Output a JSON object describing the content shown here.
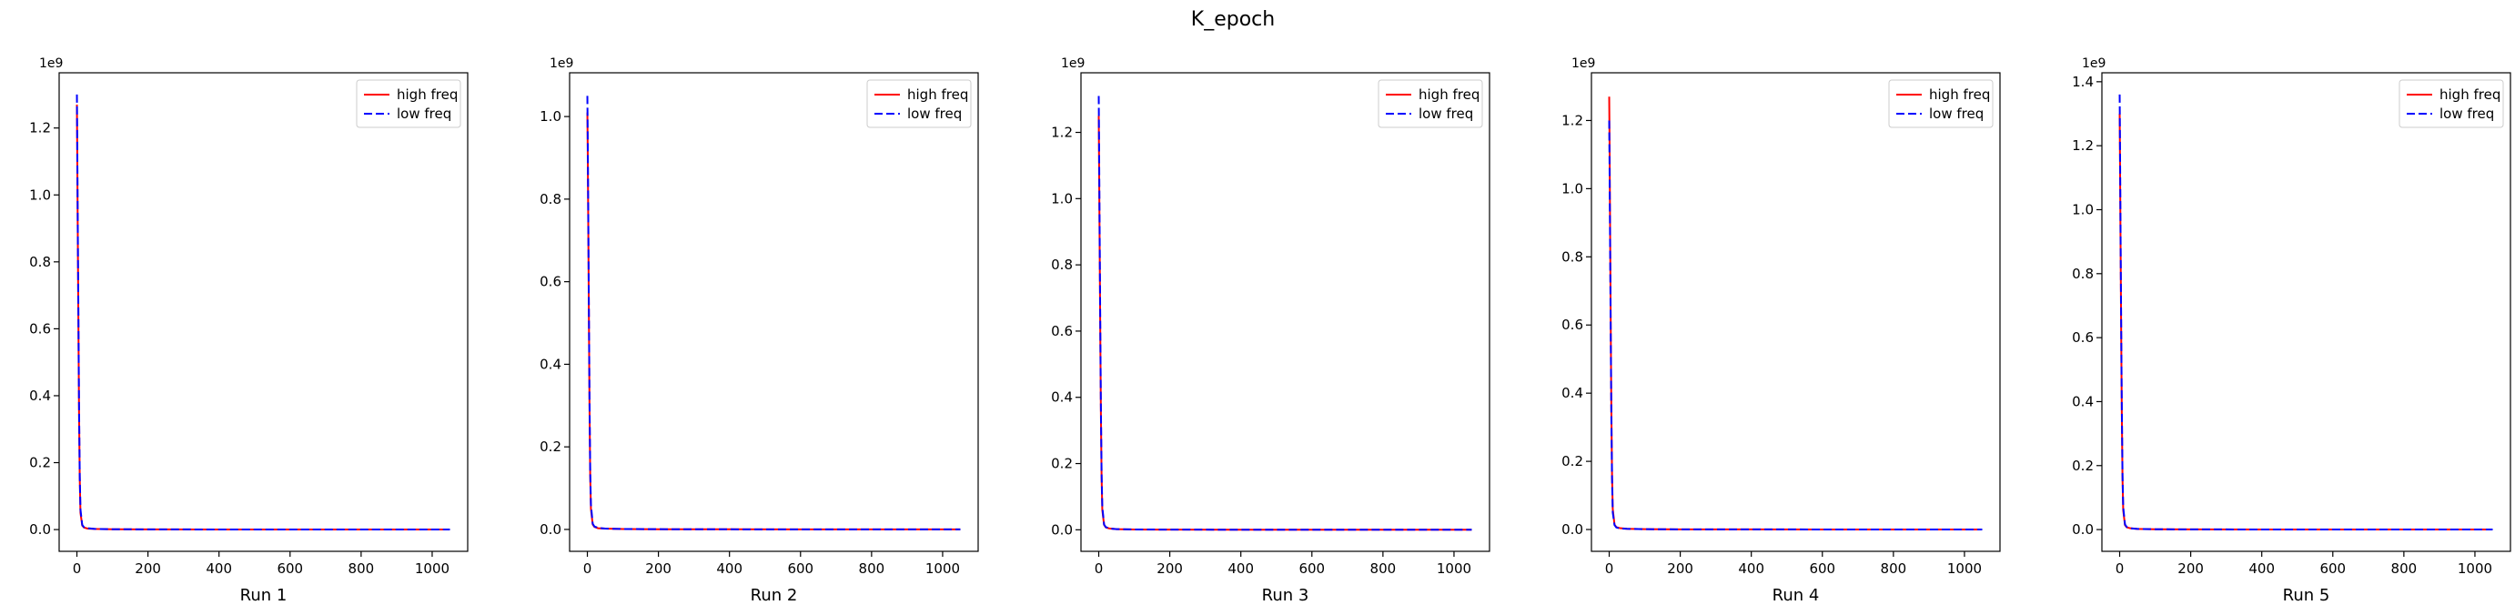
{
  "figure": {
    "suptitle": "K_epoch"
  },
  "legend_style": {
    "high_color": "#ff0000",
    "low_color": "#0000ff"
  },
  "chart_data": [
    {
      "type": "line",
      "title": "",
      "xlabel": "Run 1",
      "ylabel": "",
      "y_offset_label": "1e9",
      "xlim": [
        -50,
        1100
      ],
      "ylim": [
        -0.065,
        1.365
      ],
      "xticks": [
        0,
        200,
        400,
        600,
        800,
        1000
      ],
      "xtick_labels": [
        "0",
        "200",
        "400",
        "600",
        "800",
        "1000"
      ],
      "yticks": [
        0.0,
        0.2,
        0.4,
        0.6,
        0.8,
        1.0,
        1.2
      ],
      "ytick_labels": [
        "0.0",
        "0.2",
        "0.4",
        "0.6",
        "0.8",
        "1.0",
        "1.2"
      ],
      "grid": false,
      "legend_position": "top-right",
      "series": [
        {
          "name": "high freq",
          "color": "#ff0000",
          "dash": "solid",
          "x": [
            0,
            1,
            2,
            3,
            4,
            5,
            6,
            8,
            10,
            15,
            20,
            30,
            50,
            100,
            200,
            400,
            600,
            800,
            1050
          ],
          "y": [
            1.27,
            1.12,
            0.95,
            0.8,
            0.65,
            0.5,
            0.35,
            0.15,
            0.05,
            0.012,
            0.006,
            0.003,
            0.002,
            0.001,
            0.0005,
            0.0003,
            0.0002,
            0.0002,
            0.0002
          ]
        },
        {
          "name": "low freq",
          "color": "#0000ff",
          "dash": "dashed",
          "x": [
            0,
            1,
            2,
            3,
            4,
            5,
            6,
            8,
            10,
            15,
            20,
            30,
            50,
            100,
            200,
            400,
            600,
            800,
            1050
          ],
          "y": [
            1.3,
            1.15,
            0.98,
            0.82,
            0.68,
            0.52,
            0.37,
            0.16,
            0.06,
            0.014,
            0.007,
            0.004,
            0.002,
            0.001,
            0.0006,
            0.0003,
            0.0002,
            0.0002,
            0.0002
          ]
        }
      ]
    },
    {
      "type": "line",
      "title": "",
      "xlabel": "Run 2",
      "ylabel": "",
      "y_offset_label": "1e9",
      "xlim": [
        -50,
        1100
      ],
      "ylim": [
        -0.053,
        1.106
      ],
      "xticks": [
        0,
        200,
        400,
        600,
        800,
        1000
      ],
      "xtick_labels": [
        "0",
        "200",
        "400",
        "600",
        "800",
        "1000"
      ],
      "yticks": [
        0.0,
        0.2,
        0.4,
        0.6,
        0.8,
        1.0
      ],
      "ytick_labels": [
        "0.0",
        "0.2",
        "0.4",
        "0.6",
        "0.8",
        "1.0"
      ],
      "grid": false,
      "legend_position": "top-right",
      "series": [
        {
          "name": "high freq",
          "color": "#ff0000",
          "dash": "solid",
          "x": [
            0,
            1,
            2,
            3,
            4,
            5,
            6,
            8,
            10,
            15,
            20,
            30,
            50,
            100,
            200,
            400,
            600,
            800,
            1050
          ],
          "y": [
            1.01,
            0.92,
            0.8,
            0.68,
            0.55,
            0.43,
            0.3,
            0.13,
            0.05,
            0.012,
            0.006,
            0.003,
            0.002,
            0.001,
            0.0005,
            0.0003,
            0.0002,
            0.0002,
            0.0002
          ]
        },
        {
          "name": "low freq",
          "color": "#0000ff",
          "dash": "dashed",
          "x": [
            0,
            1,
            2,
            3,
            4,
            5,
            6,
            8,
            10,
            15,
            20,
            30,
            50,
            100,
            200,
            400,
            600,
            800,
            1050
          ],
          "y": [
            1.05,
            0.95,
            0.83,
            0.7,
            0.57,
            0.45,
            0.32,
            0.14,
            0.06,
            0.014,
            0.007,
            0.004,
            0.002,
            0.001,
            0.0006,
            0.0003,
            0.0002,
            0.0002,
            0.0002
          ]
        }
      ]
    },
    {
      "type": "line",
      "title": "",
      "xlabel": "Run 3",
      "ylabel": "",
      "y_offset_label": "1e9",
      "xlim": [
        -50,
        1100
      ],
      "ylim": [
        -0.065,
        1.38
      ],
      "xticks": [
        0,
        200,
        400,
        600,
        800,
        1000
      ],
      "xtick_labels": [
        "0",
        "200",
        "400",
        "600",
        "800",
        "1000"
      ],
      "yticks": [
        0.0,
        0.2,
        0.4,
        0.6,
        0.8,
        1.0,
        1.2
      ],
      "ytick_labels": [
        "0.0",
        "0.2",
        "0.4",
        "0.6",
        "0.8",
        "1.0",
        "1.2"
      ],
      "grid": false,
      "legend_position": "top-right",
      "series": [
        {
          "name": "high freq",
          "color": "#ff0000",
          "dash": "solid",
          "x": [
            0,
            1,
            2,
            3,
            4,
            5,
            6,
            8,
            10,
            15,
            20,
            30,
            50,
            100,
            200,
            400,
            600,
            800,
            1050
          ],
          "y": [
            1.25,
            1.1,
            0.94,
            0.79,
            0.64,
            0.5,
            0.36,
            0.16,
            0.06,
            0.015,
            0.007,
            0.004,
            0.002,
            0.001,
            0.0005,
            0.0003,
            0.0002,
            0.0002,
            0.0002
          ]
        },
        {
          "name": "low freq",
          "color": "#0000ff",
          "dash": "dashed",
          "x": [
            0,
            1,
            2,
            3,
            4,
            5,
            6,
            8,
            10,
            15,
            20,
            30,
            50,
            100,
            200,
            400,
            600,
            800,
            1050
          ],
          "y": [
            1.31,
            1.16,
            0.99,
            0.83,
            0.67,
            0.52,
            0.38,
            0.17,
            0.07,
            0.016,
            0.008,
            0.004,
            0.002,
            0.001,
            0.0006,
            0.0003,
            0.0002,
            0.0002,
            0.0002
          ]
        }
      ]
    },
    {
      "type": "line",
      "title": "",
      "xlabel": "Run 4",
      "ylabel": "",
      "y_offset_label": "1e9",
      "xlim": [
        -50,
        1100
      ],
      "ylim": [
        -0.064,
        1.34
      ],
      "xticks": [
        0,
        200,
        400,
        600,
        800,
        1000
      ],
      "xtick_labels": [
        "0",
        "200",
        "400",
        "600",
        "800",
        "1000"
      ],
      "yticks": [
        0.0,
        0.2,
        0.4,
        0.6,
        0.8,
        1.0,
        1.2
      ],
      "ytick_labels": [
        "0.0",
        "0.2",
        "0.4",
        "0.6",
        "0.8",
        "1.0",
        "1.2"
      ],
      "grid": false,
      "legend_position": "top-right",
      "series": [
        {
          "name": "high freq",
          "color": "#ff0000",
          "dash": "solid",
          "x": [
            0,
            1,
            2,
            3,
            4,
            5,
            6,
            8,
            10,
            15,
            20,
            30,
            50,
            100,
            200,
            400,
            600,
            800,
            1050
          ],
          "y": [
            1.27,
            1.14,
            0.97,
            0.81,
            0.65,
            0.5,
            0.36,
            0.16,
            0.06,
            0.014,
            0.007,
            0.004,
            0.002,
            0.001,
            0.0005,
            0.0003,
            0.0002,
            0.0002,
            0.0002
          ]
        },
        {
          "name": "low freq",
          "color": "#0000ff",
          "dash": "dashed",
          "x": [
            0,
            1,
            2,
            3,
            4,
            5,
            6,
            8,
            10,
            15,
            20,
            30,
            50,
            100,
            200,
            400,
            600,
            800,
            1050
          ],
          "y": [
            1.2,
            1.07,
            0.92,
            0.77,
            0.62,
            0.48,
            0.34,
            0.15,
            0.05,
            0.013,
            0.006,
            0.003,
            0.002,
            0.001,
            0.0005,
            0.0003,
            0.0002,
            0.0002,
            0.0002
          ]
        }
      ]
    },
    {
      "type": "line",
      "title": "",
      "xlabel": "Run 5",
      "ylabel": "",
      "y_offset_label": "1e9",
      "xlim": [
        -50,
        1100
      ],
      "ylim": [
        -0.068,
        1.428
      ],
      "xticks": [
        0,
        200,
        400,
        600,
        800,
        1000
      ],
      "xtick_labels": [
        "0",
        "200",
        "400",
        "600",
        "800",
        "1000"
      ],
      "yticks": [
        0.0,
        0.2,
        0.4,
        0.6,
        0.8,
        1.0,
        1.2,
        1.4
      ],
      "ytick_labels": [
        "0.0",
        "0.2",
        "0.4",
        "0.6",
        "0.8",
        "1.0",
        "1.2",
        "1.4"
      ],
      "grid": false,
      "legend_position": "top-right",
      "series": [
        {
          "name": "high freq",
          "color": "#ff0000",
          "dash": "solid",
          "x": [
            0,
            1,
            2,
            3,
            4,
            5,
            6,
            8,
            10,
            15,
            20,
            30,
            50,
            100,
            200,
            400,
            600,
            800,
            1050
          ],
          "y": [
            1.3,
            1.15,
            0.98,
            0.82,
            0.66,
            0.51,
            0.37,
            0.16,
            0.06,
            0.014,
            0.007,
            0.004,
            0.002,
            0.001,
            0.0005,
            0.0003,
            0.0002,
            0.0002,
            0.0002
          ]
        },
        {
          "name": "low freq",
          "color": "#0000ff",
          "dash": "dashed",
          "x": [
            0,
            1,
            2,
            3,
            4,
            5,
            6,
            8,
            10,
            15,
            20,
            30,
            50,
            100,
            200,
            400,
            600,
            800,
            1050
          ],
          "y": [
            1.36,
            1.2,
            1.02,
            0.85,
            0.69,
            0.53,
            0.39,
            0.17,
            0.07,
            0.016,
            0.008,
            0.004,
            0.002,
            0.001,
            0.0006,
            0.0003,
            0.0002,
            0.0002,
            0.0002
          ]
        }
      ]
    }
  ]
}
